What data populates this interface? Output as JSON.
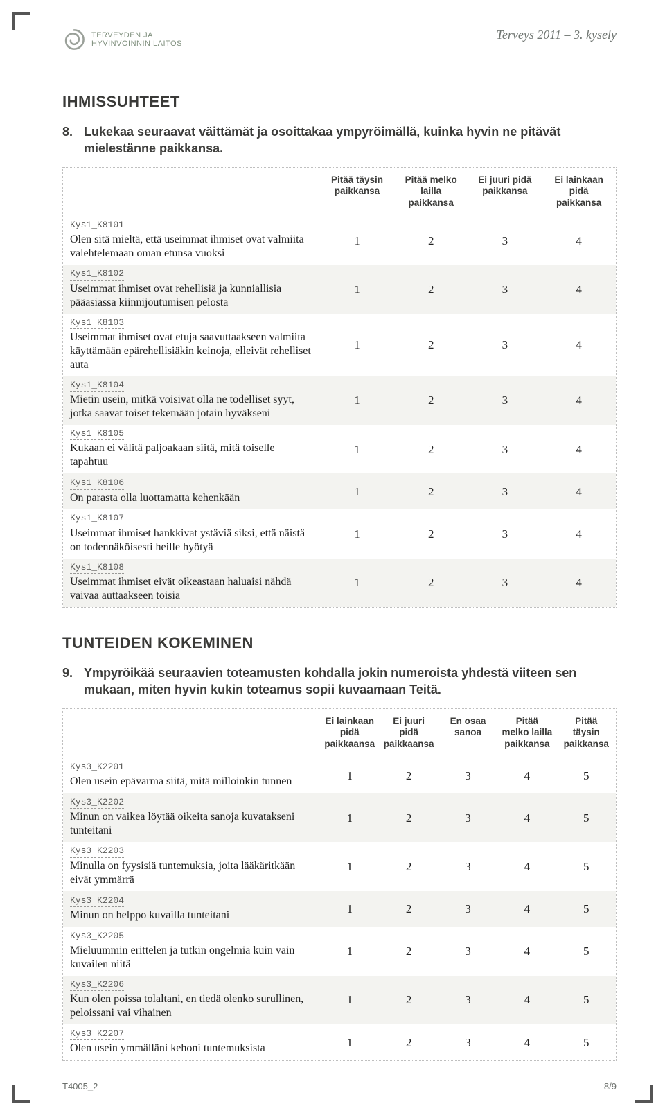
{
  "header": {
    "logo_line1": "TERVEYDEN JA",
    "logo_line2": "HYVINVOINNIN LAITOS",
    "right": "Terveys 2011 – 3. kysely"
  },
  "section1": {
    "title": "IHMISSUHTEET",
    "q_num": "8.",
    "q_text": "Lukekaa seuraavat väittämät ja osoittakaa ympyröimällä, kuinka hyvin ne pitävät mielestänne paikkansa.",
    "headers": [
      "Pitää täysin paikkansa",
      "Pitää melko lailla paikkansa",
      "Ei juuri pidä paikkansa",
      "Ei lainkaan pidä paikkansa"
    ],
    "options": [
      "1",
      "2",
      "3",
      "4"
    ],
    "rows": [
      {
        "code": "Kys1_K8101",
        "text": "Olen sitä mieltä, että useimmat ihmiset ovat valmiita valehtelemaan oman etunsa vuoksi"
      },
      {
        "code": "Kys1_K8102",
        "text": "Useimmat ihmiset ovat rehellisiä ja kunniallisia pääasiassa kiinnijoutumisen pelosta"
      },
      {
        "code": "Kys1_K8103",
        "text": "Useimmat ihmiset ovat etuja saavuttaakseen valmiita käyttämään epärehellisiäkin keinoja, elleivät rehelliset auta"
      },
      {
        "code": "Kys1_K8104",
        "text": "Mietin usein, mitkä voisivat olla ne todelliset syyt, jotka saavat toiset tekemään jotain hyväkseni"
      },
      {
        "code": "Kys1_K8105",
        "text": "Kukaan ei välitä paljoakaan siitä, mitä toiselle tapahtuu"
      },
      {
        "code": "Kys1_K8106",
        "text": "On parasta olla luottamatta kehenkään"
      },
      {
        "code": "Kys1_K8107",
        "text": "Useimmat ihmiset hankkivat ystäviä siksi, että näistä on todennäköisesti heille hyötyä"
      },
      {
        "code": "Kys1_K8108",
        "text": "Useimmat ihmiset eivät oikeastaan haluaisi nähdä vaivaa auttaakseen toisia"
      }
    ]
  },
  "section2": {
    "title": "TUNTEIDEN KOKEMINEN",
    "q_num": "9.",
    "q_text": "Ympyröikää seuraavien toteamusten kohdalla jokin numeroista yhdestä viiteen sen mukaan, miten hyvin kukin toteamus sopii kuvaamaan Teitä.",
    "headers": [
      "Ei lainkaan pidä paikkaansa",
      "Ei juuri pidä paikkaansa",
      "En osaa sanoa",
      "Pitää melko lailla paikkansa",
      "Pitää täysin paikkansa"
    ],
    "options": [
      "1",
      "2",
      "3",
      "4",
      "5"
    ],
    "rows": [
      {
        "code": "Kys3_K2201",
        "text": "Olen usein epävarma siitä, mitä milloinkin tunnen"
      },
      {
        "code": "Kys3_K2202",
        "text": "Minun on vaikea löytää oikeita sanoja kuvatakseni tunteitani"
      },
      {
        "code": "Kys3_K2203",
        "text": "Minulla on fyysisiä tuntemuksia, joita lääkäritkään eivät ymmärrä"
      },
      {
        "code": "Kys3_K2204",
        "text": "Minun on helppo kuvailla tunteitani"
      },
      {
        "code": "Kys3_K2205",
        "text": "Mieluummin erittelen ja tutkin ongelmia kuin vain kuvailen niitä"
      },
      {
        "code": "Kys3_K2206",
        "text": "Kun olen poissa tolaltani, en tiedä olenko surullinen, peloissani vai vihainen"
      },
      {
        "code": "Kys3_K2207",
        "text": "Olen usein ymmälläni kehoni tuntemuksista"
      }
    ]
  },
  "footer": {
    "left": "T4005_2",
    "right": "8/9"
  },
  "colors": {
    "zebra": "#f3f3f0",
    "dotted_border": "#bfbfbf",
    "text": "#222222",
    "muted": "#6f7571"
  }
}
